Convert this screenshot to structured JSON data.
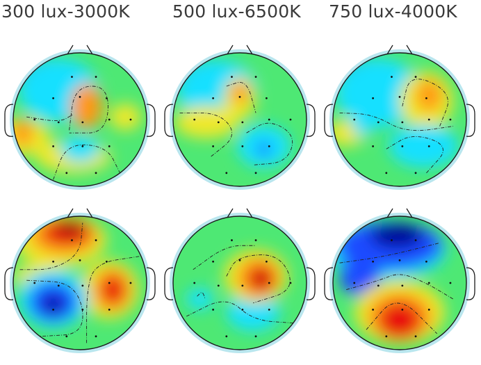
{
  "columns": [
    {
      "label": "300 lux-3000K"
    },
    {
      "label": "500 lux-6500K"
    },
    {
      "label": "750 lux-4000K"
    }
  ],
  "colors": {
    "dark_blue": "#00009a",
    "blue": "#1a4cff",
    "cyan": "#19e0ff",
    "green": "#4ee874",
    "yellow": "#f0e82a",
    "orange": "#ff9818",
    "red": "#e81010",
    "dark_red": "#9a0000",
    "head_outline": "#1a1a1a",
    "border_glow": "#b9e6ee"
  },
  "maps": [
    [
      {
        "blobs": [
          {
            "c": "dark_blue",
            "p": [
              [
                0.28,
                0.22,
                0.22,
                0.16
              ]
            ]
          },
          {
            "c": "blue",
            "p": [
              [
                0.3,
                0.24,
                0.26,
                0.2
              ]
            ]
          },
          {
            "c": "cyan",
            "p": [
              [
                0.34,
                0.28,
                0.3,
                0.24
              ]
            ]
          },
          {
            "c": "yellow",
            "p": [
              [
                0.06,
                0.63,
                0.22,
                0.14
              ],
              [
                0.45,
                0.78,
                0.28,
                0.12
              ],
              [
                0.84,
                0.48,
                0.12,
                0.1
              ]
            ]
          },
          {
            "c": "orange",
            "p": [
              [
                0.55,
                0.4,
                0.12,
                0.17
              ],
              [
                0.07,
                0.6,
                0.08,
                0.1
              ]
            ]
          },
          {
            "c": "cyan",
            "p": [
              [
                0.5,
                0.72,
                0.15,
                0.1
              ]
            ]
          }
        ],
        "contours": [
          [
            [
              0.1,
              0.48
            ],
            [
              0.35,
              0.52
            ],
            [
              0.45,
              0.46
            ]
          ],
          [
            [
              0.42,
              0.58
            ],
            [
              0.46,
              0.25
            ],
            [
              0.72,
              0.25
            ],
            [
              0.7,
              0.6
            ],
            [
              0.42,
              0.6
            ]
          ],
          [
            [
              0.3,
              0.95
            ],
            [
              0.4,
              0.68
            ],
            [
              0.7,
              0.7
            ],
            [
              0.8,
              0.9
            ]
          ]
        ]
      },
      {
        "blobs": [
          {
            "c": "dark_blue",
            "p": [
              [
                0.26,
                0.22,
                0.22,
                0.15
              ]
            ]
          },
          {
            "c": "blue",
            "p": [
              [
                0.3,
                0.24,
                0.26,
                0.19
              ]
            ]
          },
          {
            "c": "cyan",
            "p": [
              [
                0.33,
                0.28,
                0.3,
                0.23
              ]
            ]
          },
          {
            "c": "yellow",
            "p": [
              [
                0.25,
                0.52,
                0.24,
                0.12
              ],
              [
                0.5,
                0.34,
                0.12,
                0.16
              ]
            ]
          },
          {
            "c": "orange",
            "p": [
              [
                0.5,
                0.3,
                0.07,
                0.08
              ]
            ]
          },
          {
            "c": "cyan",
            "p": [
              [
                0.68,
                0.7,
                0.2,
                0.16
              ]
            ]
          },
          {
            "c": "blue",
            "p": [
              [
                0.68,
                0.72,
                0.05,
                0.05
              ]
            ]
          }
        ],
        "contours": [
          [
            [
              0.05,
              0.45
            ],
            [
              0.35,
              0.45
            ],
            [
              0.48,
              0.62
            ],
            [
              0.28,
              0.78
            ]
          ],
          [
            [
              0.55,
              0.6
            ],
            [
              0.72,
              0.5
            ],
            [
              0.92,
              0.62
            ],
            [
              0.85,
              0.82
            ],
            [
              0.6,
              0.84
            ]
          ],
          [
            [
              0.4,
              0.25
            ],
            [
              0.55,
              0.2
            ],
            [
              0.62,
              0.45
            ]
          ]
        ]
      },
      {
        "blobs": [
          {
            "c": "dark_blue",
            "p": [
              [
                0.3,
                0.2,
                0.25,
                0.16
              ]
            ]
          },
          {
            "c": "blue",
            "p": [
              [
                0.32,
                0.24,
                0.28,
                0.2
              ]
            ]
          },
          {
            "c": "cyan",
            "p": [
              [
                0.34,
                0.3,
                0.32,
                0.26
              ]
            ]
          },
          {
            "c": "yellow",
            "p": [
              [
                0.7,
                0.36,
                0.2,
                0.22
              ],
              [
                0.1,
                0.6,
                0.15,
                0.1
              ]
            ]
          },
          {
            "c": "orange",
            "p": [
              [
                0.72,
                0.32,
                0.1,
                0.12
              ]
            ]
          },
          {
            "c": "cyan",
            "p": [
              [
                0.68,
                0.7,
                0.26,
                0.16
              ],
              [
                0.22,
                0.56,
                0.08,
                0.06
              ]
            ]
          }
        ],
        "contours": [
          [
            [
              0.05,
              0.45
            ],
            [
              0.3,
              0.46
            ],
            [
              0.55,
              0.6
            ],
            [
              0.9,
              0.55
            ]
          ],
          [
            [
              0.52,
              0.4
            ],
            [
              0.58,
              0.15
            ],
            [
              0.9,
              0.3
            ],
            [
              0.8,
              0.55
            ]
          ],
          [
            [
              0.4,
              0.72
            ],
            [
              0.6,
              0.6
            ],
            [
              0.88,
              0.7
            ],
            [
              0.7,
              0.9
            ]
          ]
        ]
      }
    ],
    [
      {
        "blobs": [
          {
            "c": "yellow",
            "p": [
              [
                0.35,
                0.18,
                0.35,
                0.2
              ],
              [
                0.72,
                0.55,
                0.22,
                0.22
              ],
              [
                0.2,
                0.45,
                0.2,
                0.1
              ]
            ]
          },
          {
            "c": "orange",
            "p": [
              [
                0.38,
                0.15,
                0.25,
                0.14
              ],
              [
                0.74,
                0.55,
                0.14,
                0.16
              ]
            ]
          },
          {
            "c": "red",
            "p": [
              [
                0.4,
                0.12,
                0.18,
                0.1
              ],
              [
                0.75,
                0.55,
                0.09,
                0.11
              ]
            ]
          },
          {
            "c": "dark_red",
            "p": [
              [
                0.43,
                0.08,
                0.1,
                0.06
              ]
            ]
          },
          {
            "c": "cyan",
            "p": [
              [
                0.3,
                0.62,
                0.26,
                0.22
              ]
            ]
          },
          {
            "c": "blue",
            "p": [
              [
                0.3,
                0.64,
                0.18,
                0.15
              ]
            ]
          },
          {
            "c": "dark_blue",
            "p": [
              [
                0.3,
                0.66,
                0.08,
                0.07
              ]
            ]
          }
        ],
        "contours": [
          [
            [
              0.05,
              0.4
            ],
            [
              0.3,
              0.4
            ],
            [
              0.5,
              0.28
            ],
            [
              0.52,
              0.05
            ]
          ],
          [
            [
              0.55,
              0.95
            ],
            [
              0.55,
              0.55
            ],
            [
              0.62,
              0.35
            ],
            [
              0.95,
              0.3
            ]
          ],
          [
            [
              0.1,
              0.48
            ],
            [
              0.48,
              0.5
            ],
            [
              0.55,
              0.88
            ],
            [
              0.2,
              0.9
            ]
          ]
        ]
      },
      {
        "blobs": [
          {
            "c": "cyan",
            "p": [
              [
                0.6,
                0.72,
                0.2,
                0.14
              ],
              [
                0.2,
                0.62,
                0.1,
                0.08
              ]
            ]
          },
          {
            "c": "yellow",
            "p": [
              [
                0.62,
                0.45,
                0.24,
                0.2
              ]
            ]
          },
          {
            "c": "orange",
            "p": [
              [
                0.64,
                0.46,
                0.16,
                0.15
              ]
            ]
          },
          {
            "c": "red",
            "p": [
              [
                0.66,
                0.47,
                0.1,
                0.1
              ]
            ]
          },
          {
            "c": "dark_red",
            "p": [
              [
                0.66,
                0.47,
                0.04,
                0.04
              ]
            ]
          }
        ],
        "contours": [
          [
            [
              0.15,
              0.4
            ],
            [
              0.4,
              0.22
            ],
            [
              0.62,
              0.22
            ]
          ],
          [
            [
              0.4,
              0.45
            ],
            [
              0.48,
              0.3
            ],
            [
              0.8,
              0.28
            ],
            [
              0.92,
              0.55
            ],
            [
              0.6,
              0.65
            ]
          ],
          [
            [
              0.1,
              0.75
            ],
            [
              0.4,
              0.6
            ],
            [
              0.6,
              0.78
            ],
            [
              0.9,
              0.8
            ]
          ],
          [
            [
              0.18,
              0.6
            ],
            [
              0.22,
              0.56
            ],
            [
              0.24,
              0.62
            ]
          ]
        ]
      },
      {
        "blobs": [
          {
            "c": "cyan",
            "p": [
              [
                0.4,
                0.25,
                0.45,
                0.22
              ]
            ]
          },
          {
            "c": "blue",
            "p": [
              [
                0.42,
                0.22,
                0.4,
                0.18
              ],
              [
                0.2,
                0.45,
                0.15,
                0.15
              ]
            ]
          },
          {
            "c": "dark_blue",
            "p": [
              [
                0.48,
                0.14,
                0.2,
                0.1
              ]
            ]
          },
          {
            "c": "yellow",
            "p": [
              [
                0.5,
                0.72,
                0.34,
                0.24
              ]
            ]
          },
          {
            "c": "orange",
            "p": [
              [
                0.5,
                0.75,
                0.24,
                0.18
              ]
            ]
          },
          {
            "c": "red",
            "p": [
              [
                0.5,
                0.78,
                0.16,
                0.14
              ]
            ]
          }
        ],
        "contours": [
          [
            [
              0.1,
              0.55
            ],
            [
              0.35,
              0.48
            ],
            [
              0.5,
              0.42
            ],
            [
              0.7,
              0.5
            ],
            [
              0.9,
              0.62
            ]
          ],
          [
            [
              0.05,
              0.35
            ],
            [
              0.4,
              0.3
            ],
            [
              0.8,
              0.2
            ]
          ],
          [
            [
              0.25,
              0.85
            ],
            [
              0.48,
              0.58
            ],
            [
              0.78,
              0.88
            ]
          ]
        ]
      }
    ]
  ]
}
